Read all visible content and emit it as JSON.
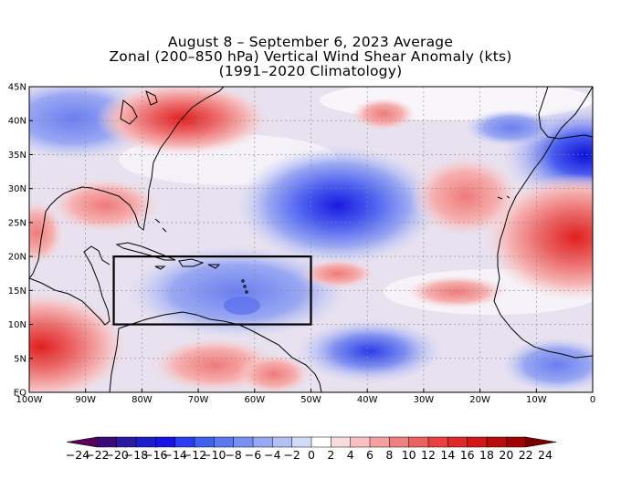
{
  "title": {
    "line1": "August 8 – September 6, 2023 Average",
    "line2": "Zonal (200–850 hPa) Vertical Wind Shear Anomaly (kts)",
    "line3": "(1991–2020 Climatology)"
  },
  "map": {
    "lat_labels": [
      "45N",
      "40N",
      "35N",
      "30N",
      "25N",
      "20N",
      "15N",
      "10N",
      "5N",
      "EQ"
    ],
    "lon_labels": [
      "100W",
      "90W",
      "80W",
      "70W",
      "60W",
      "50W",
      "40W",
      "30W",
      "20W",
      "10W",
      "0"
    ],
    "highlight_box": {
      "lon_min": -85,
      "lon_max": -50,
      "lat_min": 10,
      "lat_max": 20
    },
    "anomaly_centers": [
      {
        "name": "neg",
        "lon": -44,
        "lat": 27,
        "value": -14
      },
      {
        "name": "neg",
        "lon": -2,
        "lat": 33,
        "value": -14
      },
      {
        "name": "neg",
        "lon": -87,
        "lat": 40,
        "value": -6
      },
      {
        "name": "neg",
        "lon": -60,
        "lat": 15,
        "value": -6
      },
      {
        "name": "neg",
        "lon": -40,
        "lat": 6,
        "value": -8
      },
      {
        "name": "pos",
        "lon": -97,
        "lat": 7,
        "value": 12
      },
      {
        "name": "pos",
        "lon": -70,
        "lat": 41,
        "value": 10
      },
      {
        "name": "pos",
        "lon": -4,
        "lat": 22,
        "value": 10
      },
      {
        "name": "pos",
        "lon": -22,
        "lat": 29,
        "value": 6
      },
      {
        "name": "pos",
        "lon": -82,
        "lat": 27,
        "value": 6
      },
      {
        "name": "pos",
        "lon": -68,
        "lat": 2,
        "value": 6
      }
    ]
  },
  "colorbar": {
    "ticks": [
      "-24",
      "-22",
      "-20",
      "-18",
      "-16",
      "-14",
      "-12",
      "-10",
      "-8",
      "-6",
      "-4",
      "-2",
      "0",
      "2",
      "4",
      "6",
      "8",
      "10",
      "12",
      "14",
      "16",
      "18",
      "20",
      "22",
      "24"
    ],
    "colors": [
      "#5a005a",
      "#3c0a78",
      "#2a1aa0",
      "#1c1cc8",
      "#1414e6",
      "#2a3cf0",
      "#4060f0",
      "#5a78f0",
      "#7890f0",
      "#96a8f0",
      "#b4c0f4",
      "#d2dcf8",
      "#ffffff",
      "#fadcdc",
      "#f8c0c0",
      "#f4a0a0",
      "#f08080",
      "#ec6060",
      "#e84040",
      "#e02828",
      "#d01818",
      "#b80c0c",
      "#a00000",
      "#7a0000"
    ]
  }
}
